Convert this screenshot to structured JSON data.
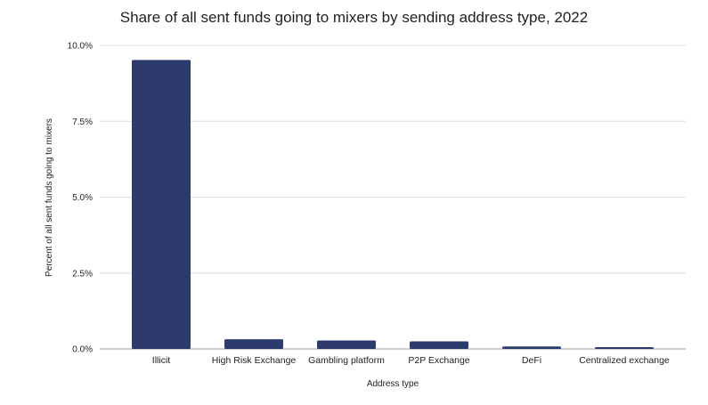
{
  "chart_data": {
    "type": "bar",
    "title": "Share of all sent funds going to mixers by sending address type, 2022",
    "xlabel": "Address type",
    "ylabel": "Percent of all sent funds going to mixers",
    "categories": [
      "Illicit",
      "High Risk Exchange",
      "Gambling platform",
      "P2P Exchange",
      "DeFi",
      "Centralized exchange"
    ],
    "values": [
      9.52,
      0.32,
      0.28,
      0.25,
      0.08,
      0.06
    ],
    "ylim": [
      0,
      10
    ],
    "yticks": [
      "0.0%",
      "2.5%",
      "5.0%",
      "7.5%",
      "10.0%"
    ],
    "ytick_values": [
      0,
      2.5,
      5,
      7.5,
      10
    ],
    "grid": true,
    "bar_color": "#2d3a6e",
    "grid_color": "#dddddd"
  }
}
